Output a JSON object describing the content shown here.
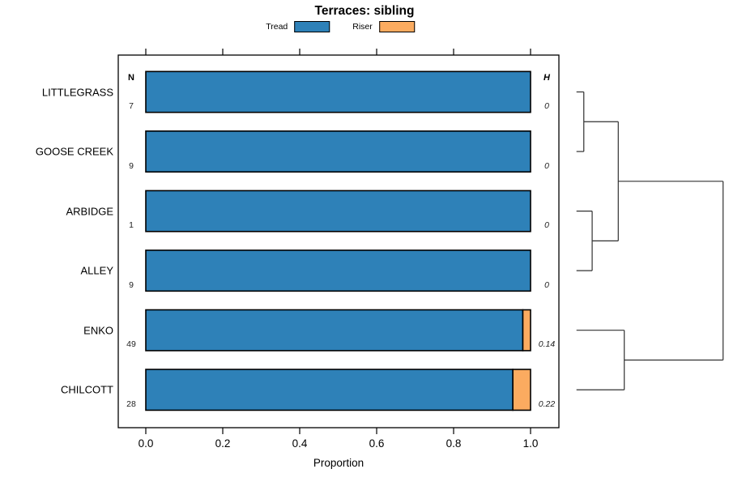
{
  "title": "Terraces: sibling",
  "legend": {
    "items": [
      {
        "label": "Tread",
        "color": "#2E81B8"
      },
      {
        "label": "Riser",
        "color": "#FBAB60"
      }
    ]
  },
  "chart_data": {
    "type": "bar",
    "subtype": "horizontal_stacked_proportion_with_dendrogram",
    "title": "Terraces: sibling",
    "xlabel": "Proportion",
    "xlim": [
      0.0,
      1.0
    ],
    "xticks": [
      0.0,
      0.2,
      0.4,
      0.6,
      0.8,
      1.0
    ],
    "xtick_labels": [
      "0.0",
      "0.2",
      "0.4",
      "0.6",
      "0.8",
      "1.0"
    ],
    "categories": [
      "LITTLEGRASS",
      "GOOSE CREEK",
      "ARBIDGE",
      "ALLEY",
      "ENKO",
      "CHILCOTT"
    ],
    "series": [
      {
        "name": "Tread",
        "color": "#2E81B8",
        "values": [
          1.0,
          1.0,
          1.0,
          1.0,
          0.98,
          0.954
        ]
      },
      {
        "name": "Riser",
        "color": "#FBAB60",
        "values": [
          0.0,
          0.0,
          0.0,
          0.0,
          0.02,
          0.046
        ]
      }
    ],
    "n_column": {
      "header": "N",
      "values": [
        "7",
        "9",
        "1",
        "9",
        "49",
        "28"
      ]
    },
    "h_column": {
      "header": "H",
      "values": [
        "0",
        "0",
        "0",
        "0",
        "0.14",
        "0.22"
      ]
    },
    "legend_position": "top",
    "grid": false,
    "dendrogram": {
      "present": true,
      "side": "right",
      "merges": [
        {
          "a": "leaf:0",
          "b": "leaf:1",
          "height": 0.05
        },
        {
          "a": "leaf:2",
          "b": "leaf:3",
          "height": 0.107
        },
        {
          "a": "merge:0",
          "b": "merge:1",
          "height": 0.285
        },
        {
          "a": "leaf:4",
          "b": "leaf:5",
          "height": 0.326
        },
        {
          "a": "merge:2",
          "b": "merge:3",
          "height": 1.0
        }
      ]
    }
  }
}
